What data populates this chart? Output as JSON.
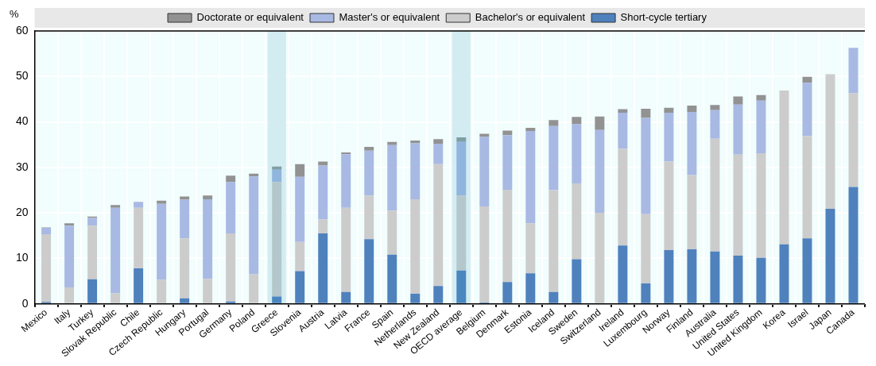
{
  "chart_data": {
    "type": "bar",
    "stacked": true,
    "ylabel": "%",
    "legend": "top",
    "grid": true,
    "ylim": [
      0,
      60
    ],
    "yticks": [
      0,
      10,
      20,
      30,
      40,
      50,
      60
    ],
    "categories": [
      "Mexico",
      "Italy",
      "Turkey",
      "Slovak Republic",
      "Chile",
      "Czech Republic",
      "Hungary",
      "Portugal",
      "Germany",
      "Poland",
      "Greece",
      "Slovenia",
      "Austria",
      "Latvia",
      "France",
      "Spain",
      "Netherlands",
      "New Zealand",
      "OECD average",
      "Belgium",
      "Denmark",
      "Estonia",
      "Iceland",
      "Sweden",
      "Switzerland",
      "Ireland",
      "Luxembourg",
      "Norway",
      "Finland",
      "Australia",
      "United States",
      "United Kingdom",
      "Korea",
      "Israel",
      "Japan",
      "Canada"
    ],
    "bands": [
      {
        "axis": "x",
        "from": "Greece",
        "to": "Greece",
        "color": "#d3ecf2"
      },
      {
        "axis": "x",
        "from": "OECD average",
        "to": "OECD average",
        "color": "#d3ecf2"
      }
    ],
    "series": [
      {
        "name": "Short-cycle tertiary",
        "color": "#4f81bd",
        "colors": [
          "#4f81bd",
          "#4f81bd",
          "#4f81bd",
          "#4f81bd",
          "#4f81bd",
          "#4f81bd",
          "#4f81bd",
          "#4f81bd",
          "#4f81bd",
          "#4f81bd",
          "#4a86bf",
          "#4f81bd",
          "#4f81bd",
          "#4f81bd",
          "#4f81bd",
          "#4f81bd",
          "#4f81bd",
          "#4f81bd",
          "#4a86bf",
          "#4f81bd",
          "#4f81bd",
          "#4f81bd",
          "#4f81bd",
          "#4f81bd",
          "#4f81bd",
          "#4f81bd",
          "#4f81bd",
          "#4f81bd",
          "#4f81bd",
          "#4f81bd",
          "#4f81bd",
          "#4f81bd",
          "#4f81bd",
          "#4f81bd",
          "#4f81bd",
          "#4f81bd"
        ],
        "values": [
          0.4,
          0,
          5.4,
          null,
          7.8,
          null,
          1.2,
          0,
          0.5,
          0,
          1.6,
          7.2,
          15.5,
          2.6,
          14.2,
          10.8,
          2.2,
          3.9,
          7.3,
          0.3,
          4.8,
          6.7,
          2.6,
          9.8,
          0,
          12.8,
          4.5,
          11.8,
          12.0,
          11.5,
          10.6,
          10.1,
          13.1,
          14.4,
          20.9,
          25.7
        ]
      },
      {
        "name": "Bachelor's or equivalent",
        "color": "#cccccc",
        "colors": [
          "#cccccc",
          "#cccccc",
          "#cccccc",
          "#cccccc",
          "#cccccc",
          "#cccccc",
          "#cccccc",
          "#cccccc",
          "#cccccc",
          "#cccccc",
          "#b4c7cc",
          "#cccccc",
          "#cccccc",
          "#cccccc",
          "#cccccc",
          "#cccccc",
          "#cccccc",
          "#cccccc",
          "#b4c7cc",
          "#cccccc",
          "#cccccc",
          "#cccccc",
          "#cccccc",
          "#cccccc",
          "#cccccc",
          "#cccccc",
          "#cccccc",
          "#cccccc",
          "#cccccc",
          "#cccccc",
          "#cccccc",
          "#cccccc",
          "#cccccc",
          "#cccccc",
          "#cccccc",
          "#cccccc"
        ],
        "values": [
          14.9,
          3.6,
          11.8,
          2.3,
          13.3,
          5.3,
          13.2,
          5.5,
          15.0,
          6.5,
          25.2,
          6.4,
          3.1,
          18.5,
          9.6,
          9.7,
          20.8,
          26.8,
          16.5,
          21.1,
          20.3,
          11.0,
          22.4,
          16.7,
          20.0,
          21.3,
          15.2,
          19.5,
          16.3,
          24.8,
          22.2,
          23.0,
          33.8,
          22.5,
          29.6,
          20.6
        ]
      },
      {
        "name": "Master's or equivalent",
        "color": "#a8b9e3",
        "colors": [
          "#a8b9e3",
          "#a8b9e3",
          "#a8b9e3",
          "#a8b9e3",
          "#a8b9e3",
          "#a8b9e3",
          "#a8b9e3",
          "#a8b9e3",
          "#a8b9e3",
          "#a8b9e3",
          "#90b5de",
          "#a8b9e3",
          "#a8b9e3",
          "#a8b9e3",
          "#a8b9e3",
          "#a8b9e3",
          "#a8b9e3",
          "#a8b9e3",
          "#90b5de",
          "#a8b9e3",
          "#a8b9e3",
          "#a8b9e3",
          "#a8b9e3",
          "#a8b9e3",
          "#a8b9e3",
          "#a8b9e3",
          "#a8b9e3",
          "#a8b9e3",
          "#a8b9e3",
          "#a8b9e3",
          "#a8b9e3",
          "#a8b9e3",
          "#a8b9e3",
          "#a8b9e3",
          "#a8b9e3",
          "#a8b9e3"
        ],
        "values": [
          1.4,
          13.6,
          1.7,
          18.8,
          1.3,
          16.7,
          8.5,
          17.5,
          11.3,
          21.5,
          2.7,
          14.3,
          11.8,
          11.8,
          9.9,
          14.4,
          12.3,
          4.5,
          11.8,
          15.3,
          12.0,
          20.3,
          14.1,
          13.0,
          18.2,
          7.9,
          21.2,
          10.7,
          13.9,
          6.3,
          11.0,
          11.6,
          0,
          11.7,
          0,
          10.0
        ]
      },
      {
        "name": "Doctorate or equivalent",
        "color": "#929292",
        "colors": [
          "#929292",
          "#929292",
          "#929292",
          "#929292",
          "#929292",
          "#929292",
          "#929292",
          "#929292",
          "#929292",
          "#929292",
          "#7f9ea6",
          "#929292",
          "#929292",
          "#929292",
          "#929292",
          "#929292",
          "#929292",
          "#929292",
          "#7f9ea6",
          "#929292",
          "#929292",
          "#929292",
          "#929292",
          "#929292",
          "#929292",
          "#929292",
          "#929292",
          "#929292",
          "#929292",
          "#929292",
          "#929292",
          "#929292",
          "#929292",
          "#929292",
          "#929292",
          "#929292"
        ],
        "values": [
          0.1,
          0.5,
          0.3,
          0.6,
          0,
          0.7,
          0.7,
          0.8,
          1.4,
          0.6,
          0.7,
          2.8,
          0.9,
          0.4,
          0.8,
          0.7,
          0.6,
          1.0,
          1.0,
          0.7,
          1.0,
          0.7,
          1.3,
          1.6,
          3.0,
          0.8,
          2.0,
          1.1,
          1.4,
          1.1,
          1.8,
          1.2,
          0,
          1.3,
          0,
          0
        ]
      }
    ]
  }
}
